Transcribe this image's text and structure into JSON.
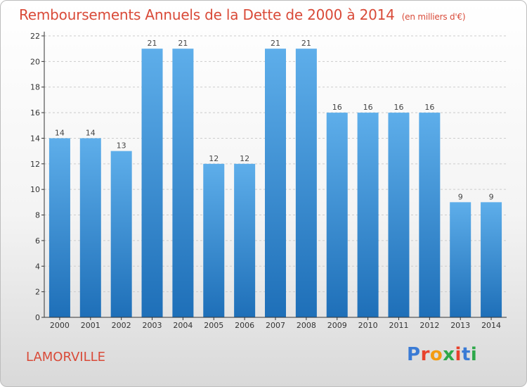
{
  "title": "Remboursements Annuels de la Dette de 2000 à 2014",
  "unit": "(en milliers d'€)",
  "commune": "LAMORVILLE",
  "logo": {
    "text": "Proxiti",
    "letters": [
      "P",
      "r",
      "o",
      "x",
      "i",
      "t",
      "i"
    ],
    "colors": [
      "#3a7bd5",
      "#e8412c",
      "#f39c12",
      "#2ea84a",
      "#e8412c",
      "#3a7bd5",
      "#2ea84a"
    ]
  },
  "colors": {
    "title": "#d94a38",
    "bar_top": "#5eaeea",
    "bar_bottom": "#1e6fb8",
    "grid": "#cccccc",
    "axis": "#333333"
  },
  "chart_data": {
    "type": "bar",
    "title": "Remboursements Annuels de la Dette de 2000 à 2014",
    "xlabel": "",
    "ylabel": "",
    "categories": [
      "2000",
      "2001",
      "2002",
      "2003",
      "2004",
      "2005",
      "2006",
      "2007",
      "2008",
      "2009",
      "2010",
      "2011",
      "2012",
      "2013",
      "2014"
    ],
    "values": [
      14,
      14,
      13,
      21,
      21,
      12,
      12,
      21,
      21,
      16,
      16,
      16,
      16,
      9,
      9
    ],
    "ylim": [
      0,
      22
    ],
    "yticks": [
      0,
      2,
      4,
      6,
      8,
      10,
      12,
      14,
      16,
      18,
      20,
      22
    ],
    "grid": true
  }
}
